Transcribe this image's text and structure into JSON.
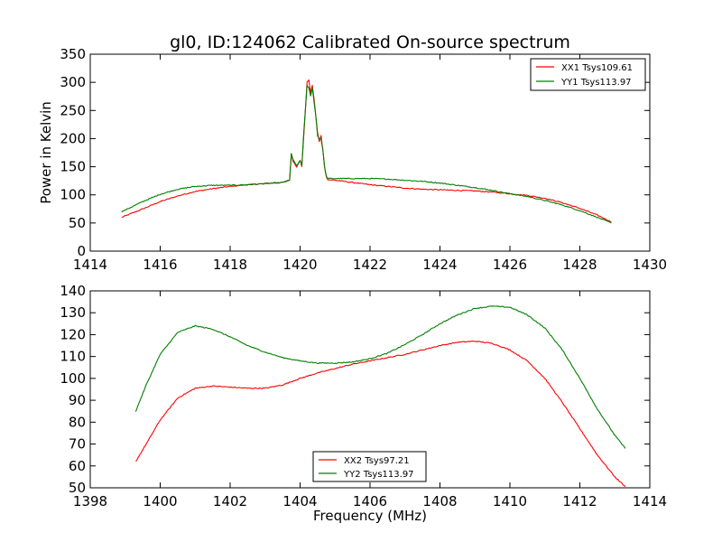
{
  "title": "gl0, ID:124062 Calibrated On-source spectrum",
  "chart_data": [
    {
      "type": "line",
      "xlabel": "",
      "ylabel": "Power in Kelvin",
      "xlim": [
        1414,
        1430
      ],
      "ylim": [
        0,
        350
      ],
      "xticks": [
        "1414",
        "1416",
        "1418",
        "1420",
        "1422",
        "1424",
        "1426",
        "1428",
        "1430"
      ],
      "yticks": [
        "0",
        "50",
        "100",
        "150",
        "200",
        "250",
        "300",
        "350"
      ],
      "grid": false,
      "legend_position": "top-right",
      "series": [
        {
          "name": "XX1 Tsys109.61",
          "color": "#ff0000",
          "x": [
            1414.9,
            1415.5,
            1416.0,
            1416.5,
            1417.0,
            1417.5,
            1418.0,
            1418.5,
            1419.0,
            1419.5,
            1419.7,
            1419.75,
            1419.8,
            1419.9,
            1420.0,
            1420.05,
            1420.1,
            1420.2,
            1420.25,
            1420.3,
            1420.35,
            1420.4,
            1420.45,
            1420.5,
            1420.55,
            1420.6,
            1420.65,
            1420.7,
            1420.75,
            1420.8,
            1421.0,
            1421.5,
            1422.0,
            1422.5,
            1423.0,
            1423.5,
            1424.0,
            1424.5,
            1425.0,
            1425.5,
            1426.0,
            1426.5,
            1427.0,
            1427.5,
            1428.0,
            1428.5,
            1428.9
          ],
          "y": [
            60,
            75,
            88,
            98,
            106,
            111,
            115,
            118,
            120,
            122,
            126,
            172,
            160,
            150,
            162,
            150,
            200,
            300,
            305,
            280,
            295,
            270,
            240,
            210,
            195,
            205,
            180,
            150,
            132,
            127,
            126,
            122,
            118,
            115,
            112,
            110,
            109,
            108,
            107,
            105,
            102,
            99,
            94,
            86,
            76,
            64,
            52
          ]
        },
        {
          "name": "YY1 Tsys113.97",
          "color": "#007f00",
          "x": [
            1414.9,
            1415.5,
            1416.0,
            1416.5,
            1417.0,
            1417.5,
            1418.0,
            1418.5,
            1419.0,
            1419.5,
            1419.7,
            1419.75,
            1419.8,
            1419.9,
            1420.0,
            1420.05,
            1420.1,
            1420.2,
            1420.25,
            1420.3,
            1420.35,
            1420.4,
            1420.45,
            1420.5,
            1420.55,
            1420.6,
            1420.65,
            1420.7,
            1420.75,
            1420.8,
            1421.0,
            1421.5,
            1422.0,
            1422.5,
            1423.0,
            1423.5,
            1424.0,
            1424.5,
            1425.0,
            1425.5,
            1426.0,
            1426.5,
            1427.0,
            1427.5,
            1428.0,
            1428.5,
            1428.9
          ],
          "y": [
            70,
            88,
            101,
            110,
            115,
            117,
            117,
            118,
            120,
            122,
            126,
            174,
            162,
            152,
            160,
            152,
            205,
            295,
            290,
            275,
            290,
            265,
            240,
            205,
            200,
            200,
            180,
            150,
            133,
            129,
            129,
            129,
            129,
            128,
            126,
            124,
            121,
            117,
            113,
            108,
            102,
            97,
            90,
            82,
            72,
            60,
            50
          ]
        }
      ]
    },
    {
      "type": "line",
      "xlabel": "Frequency (MHz)",
      "ylabel": "",
      "xlim": [
        1398,
        1414
      ],
      "ylim": [
        50,
        140
      ],
      "xticks": [
        "1398",
        "1400",
        "1402",
        "1404",
        "1406",
        "1408",
        "1410",
        "1412",
        "1414"
      ],
      "yticks": [
        "50",
        "60",
        "70",
        "80",
        "90",
        "100",
        "110",
        "120",
        "130",
        "140"
      ],
      "grid": false,
      "legend_position": "bottom-center",
      "series": [
        {
          "name": "XX2 Tsys97.21",
          "color": "#ff0000",
          "x": [
            1399.3,
            1399.6,
            1400.0,
            1400.5,
            1401.0,
            1401.5,
            1402.0,
            1402.5,
            1403.0,
            1403.5,
            1404.0,
            1404.5,
            1405.0,
            1405.5,
            1406.0,
            1406.5,
            1407.0,
            1407.5,
            1408.0,
            1408.5,
            1409.0,
            1409.5,
            1410.0,
            1410.5,
            1411.0,
            1411.5,
            1412.0,
            1412.5,
            1413.0,
            1413.3
          ],
          "y": [
            62,
            70,
            81,
            91,
            95.5,
            96.5,
            96,
            95.5,
            95.5,
            97,
            100,
            102.5,
            104.5,
            106.5,
            108,
            109.5,
            111,
            113,
            115,
            116.5,
            117,
            116,
            113,
            108,
            100,
            89,
            77,
            65,
            55,
            50.5
          ]
        },
        {
          "name": "YY2 Tsys113.97",
          "color": "#007f00",
          "x": [
            1399.3,
            1399.6,
            1400.0,
            1400.5,
            1401.0,
            1401.5,
            1402.0,
            1402.5,
            1403.0,
            1403.5,
            1404.0,
            1404.5,
            1405.0,
            1405.5,
            1406.0,
            1406.5,
            1407.0,
            1407.5,
            1408.0,
            1408.5,
            1409.0,
            1409.5,
            1410.0,
            1410.5,
            1411.0,
            1411.5,
            1412.0,
            1412.5,
            1413.0,
            1413.3
          ],
          "y": [
            85,
            97,
            111,
            121,
            124,
            122.5,
            119,
            115,
            112,
            109.5,
            108,
            107,
            107,
            107.5,
            109,
            111.5,
            115.5,
            120,
            125,
            129,
            132,
            133,
            132.5,
            129,
            123,
            113,
            100,
            86,
            74,
            68
          ]
        }
      ]
    }
  ]
}
